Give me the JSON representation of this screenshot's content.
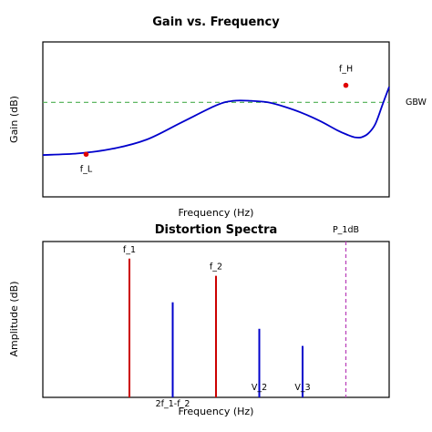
{
  "chart_data": [
    {
      "type": "line",
      "title": "Gain vs. Frequency",
      "xlabel": "Frequency (Hz)",
      "ylabel": "Gain (dB)",
      "xlim": [
        0,
        100
      ],
      "ylim": [
        0,
        100
      ],
      "ticks_shown": false,
      "grid": false,
      "series": [
        {
          "color": "#0000cc",
          "x": [
            0,
            10,
            20,
            30,
            40,
            50,
            55,
            60,
            65,
            70,
            75,
            80,
            85,
            88,
            90,
            92,
            94,
            96,
            98,
            100
          ],
          "y": [
            27,
            28,
            31,
            37,
            48,
            59,
            62,
            62,
            61,
            58,
            54,
            49,
            43,
            40,
            38.5,
            38.5,
            41,
            47,
            59,
            71
          ]
        }
      ],
      "reference_line": {
        "label": "GBW",
        "y": 61,
        "color": "#4caf50",
        "style": "dashed"
      },
      "markers": [
        {
          "label": "f_L",
          "x": 12.5,
          "y": 27.5,
          "color": "#e00000"
        },
        {
          "label": "f_H",
          "x": 87.5,
          "y": 72,
          "color": "#e00000"
        }
      ]
    },
    {
      "type": "bar",
      "title": "Distortion Spectra",
      "xlabel": "Frequency (Hz)",
      "ylabel": "Amplitude (dB)",
      "xlim": [
        0,
        8
      ],
      "ylim": [
        0,
        100
      ],
      "ticks_shown": false,
      "stems": [
        {
          "label": "f_1",
          "x": 2,
          "value": 89,
          "color": "#cc0000",
          "label_pos": "top"
        },
        {
          "label": "2f_1-f_2",
          "x": 3,
          "value": 61,
          "color": "#0000cc",
          "label_pos": "bottom"
        },
        {
          "label": "f_2",
          "x": 4,
          "value": 78,
          "color": "#cc0000",
          "label_pos": "top"
        },
        {
          "label": "V_2",
          "x": 5,
          "value": 44,
          "color": "#0000cc",
          "label_pos": "bottom"
        },
        {
          "label": "V_3",
          "x": 6,
          "value": 33,
          "color": "#0000cc",
          "label_pos": "bottom"
        }
      ],
      "reference_line": {
        "label": "P_1dB",
        "x": 7,
        "color": "#bb44bb",
        "style": "dashed"
      }
    }
  ]
}
